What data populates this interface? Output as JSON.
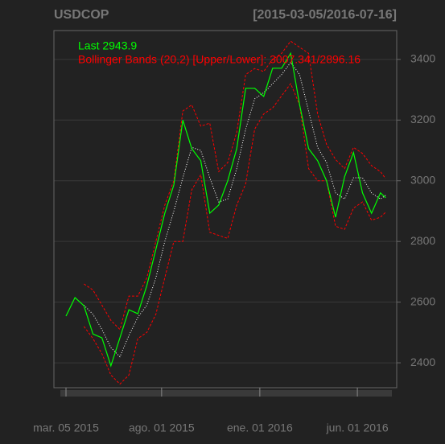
{
  "chart_data": {
    "type": "line",
    "title": "USDCOP",
    "subtitle": "[2015-03-05/2016-07-16]",
    "x": [
      "2015-03-05",
      "2015-03-19",
      "2015-04-02",
      "2015-04-16",
      "2015-04-30",
      "2015-05-14",
      "2015-05-28",
      "2015-06-11",
      "2015-06-25",
      "2015-07-09",
      "2015-07-23",
      "2015-08-06",
      "2015-08-20",
      "2015-09-03",
      "2015-09-17",
      "2015-10-01",
      "2015-10-15",
      "2015-10-29",
      "2015-11-12",
      "2015-11-26",
      "2015-12-10",
      "2015-12-24",
      "2016-01-07",
      "2016-01-21",
      "2016-02-04",
      "2016-02-18",
      "2016-03-03",
      "2016-03-17",
      "2016-03-31",
      "2016-04-14",
      "2016-04-28",
      "2016-05-12",
      "2016-05-26",
      "2016-06-09",
      "2016-06-23",
      "2016-07-07",
      "2016-07-15"
    ],
    "series": [
      {
        "name": "Last 2943.9",
        "color": "#00ff00",
        "values": [
          2554,
          2615,
          2588,
          2495,
          2482,
          2390,
          2482,
          2575,
          2562,
          2655,
          2774,
          2893,
          2986,
          3200,
          3106,
          3066,
          2893,
          2920,
          3000,
          3106,
          3305,
          3305,
          3278,
          3371,
          3371,
          3420,
          3251,
          3106,
          3066,
          3000,
          2880,
          3013,
          3093,
          2960,
          2893,
          2960,
          2943.9
        ]
      }
    ],
    "bands": {
      "name": "Bollinger Bands (20,2) [Upper/Lower]: 3007.341/2896.16",
      "color": "#ff0000",
      "mid_color": "#ffffff",
      "upper": [
        null,
        null,
        2660,
        2640,
        2590,
        2540,
        2510,
        2620,
        2620,
        2680,
        2800,
        2920,
        3000,
        3230,
        3250,
        3180,
        3190,
        3030,
        3060,
        3160,
        3350,
        3370,
        3360,
        3400,
        3420,
        3460,
        3440,
        3420,
        3220,
        3120,
        3070,
        3040,
        3110,
        3090,
        3050,
        3030,
        3007.341
      ],
      "mid": [
        null,
        null,
        2590,
        2560,
        2510,
        2450,
        2420,
        2490,
        2550,
        2590,
        2680,
        2800,
        2900,
        3010,
        3110,
        3100,
        3010,
        2930,
        2940,
        3040,
        3170,
        3270,
        3290,
        3320,
        3350,
        3390,
        3350,
        3230,
        3110,
        3060,
        2960,
        2940,
        3010,
        3010,
        2960,
        2940,
        2952
      ],
      "lower": [
        null,
        null,
        2520,
        2480,
        2430,
        2360,
        2330,
        2360,
        2480,
        2500,
        2560,
        2680,
        2800,
        2800,
        2970,
        3020,
        2830,
        2820,
        2810,
        2920,
        2990,
        3170,
        3220,
        3240,
        3280,
        3320,
        3250,
        3040,
        3000,
        3000,
        2850,
        2840,
        2910,
        2930,
        2870,
        2880,
        2896.16
      ]
    },
    "xlim": [
      "2015-03-05",
      "2016-07-16"
    ],
    "xticks": [
      {
        "value": "2015-03-05",
        "label": "mar. 05 2015"
      },
      {
        "value": "2015-08-01",
        "label": "ago. 01 2015"
      },
      {
        "value": "2016-01-01",
        "label": "ene. 01 2016"
      },
      {
        "value": "2016-06-01",
        "label": "jun. 01 2016"
      }
    ],
    "ylim": [
      2318,
      3495
    ],
    "yticks": [
      2400,
      2600,
      2800,
      3000,
      3200,
      3400
    ],
    "grid": true
  }
}
